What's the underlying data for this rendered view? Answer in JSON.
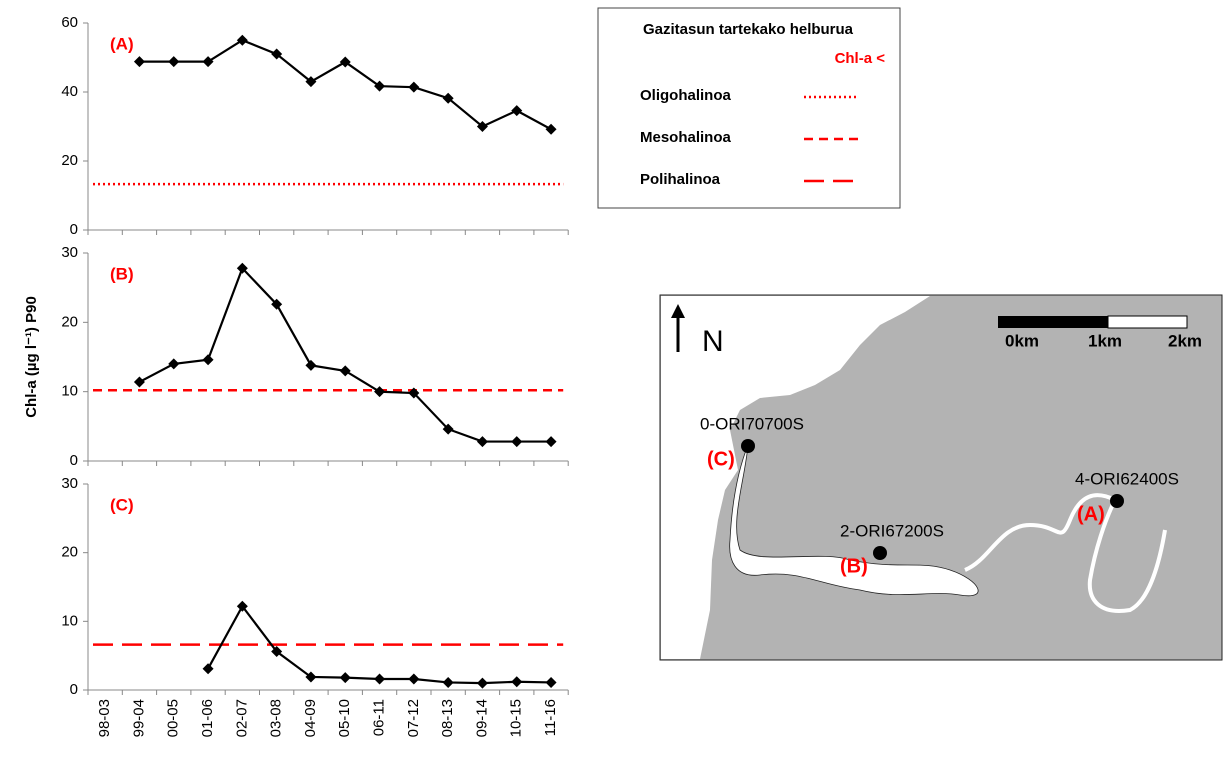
{
  "chart_data": [
    {
      "type": "line",
      "panel": "(A)",
      "ylim": [
        0,
        60
      ],
      "yticks": [
        0,
        20,
        40,
        60
      ],
      "series": [
        {
          "color": "#000000",
          "values": [
            null,
            48.8,
            48.8,
            48.8,
            55,
            51,
            43,
            48.7,
            41.7,
            41.4,
            38.2,
            30,
            34.6,
            29.2
          ]
        }
      ],
      "threshold": 13.3,
      "threshold_color": "#ff0000",
      "threshold_dash": "2 3"
    },
    {
      "type": "line",
      "panel": "(B)",
      "ylim": [
        0,
        30
      ],
      "yticks": [
        0,
        10,
        20,
        30
      ],
      "series": [
        {
          "color": "#000000",
          "values": [
            null,
            11.4,
            14,
            14.6,
            27.8,
            22.6,
            13.8,
            13,
            10,
            9.8,
            4.6,
            2.8,
            2.8,
            2.8
          ]
        }
      ],
      "threshold": 10.2,
      "threshold_color": "#ff0000",
      "threshold_dash": "9 6"
    },
    {
      "type": "line",
      "panel": "(C)",
      "ylim": [
        0,
        30
      ],
      "yticks": [
        0,
        10,
        20,
        30
      ],
      "categories": [
        "98-03",
        "99-04",
        "00-05",
        "01-06",
        "02-07",
        "03-08",
        "04-09",
        "05-10",
        "06-11",
        "07-12",
        "08-13",
        "09-14",
        "10-15",
        "11-16"
      ],
      "series": [
        {
          "color": "#000000",
          "values": [
            null,
            null,
            null,
            3.1,
            12.2,
            5.6,
            1.9,
            1.8,
            1.6,
            1.6,
            1.1,
            1.0,
            1.2,
            1.1
          ]
        }
      ],
      "threshold": 6.6,
      "threshold_color": "#ff0000",
      "threshold_dash": "20 9"
    }
  ],
  "ylabel": "Chl-a (µg l⁻¹)  P90",
  "legend": {
    "title": "Gazitasun tartekako helburua",
    "subtitle": "Chl-a  <",
    "entries": [
      "Oligohalinoa",
      "Mesohalinoa",
      "Polihalinoa"
    ]
  },
  "map": {
    "north": "N",
    "scale": [
      "0km",
      "1km",
      "2km"
    ],
    "stations": [
      {
        "code": "0-ORI70700S",
        "panel": "(C)"
      },
      {
        "code": "2-ORI67200S",
        "panel": "(B)"
      },
      {
        "code": "4-ORI62400S",
        "panel": "(A)"
      }
    ]
  }
}
